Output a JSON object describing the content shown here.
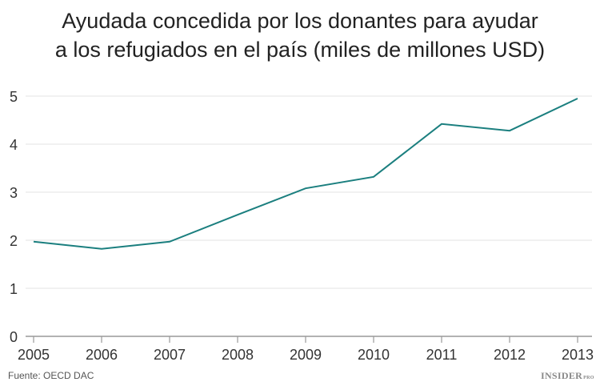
{
  "chart_data": {
    "type": "line",
    "title_line1": "Ayudada concedida por los donantes para ayudar",
    "title_line2": "a los refugiados en el país (miles de millones USD)",
    "xlabel": "",
    "ylabel": "",
    "categories": [
      "2005",
      "2006",
      "2007",
      "2008",
      "2009",
      "2010",
      "2011",
      "2012",
      "2013"
    ],
    "values": [
      1.97,
      1.82,
      1.97,
      2.53,
      3.08,
      3.32,
      4.42,
      4.28,
      4.95
    ],
    "ylim": [
      0,
      5
    ],
    "yticks": [
      "0",
      "1",
      "2",
      "3",
      "4",
      "5"
    ],
    "grid": true,
    "line_color": "#1b7f7f"
  },
  "source": "Fuente: OECD DAC",
  "logo": {
    "main": "INSIDER",
    "sub": "PRO"
  }
}
